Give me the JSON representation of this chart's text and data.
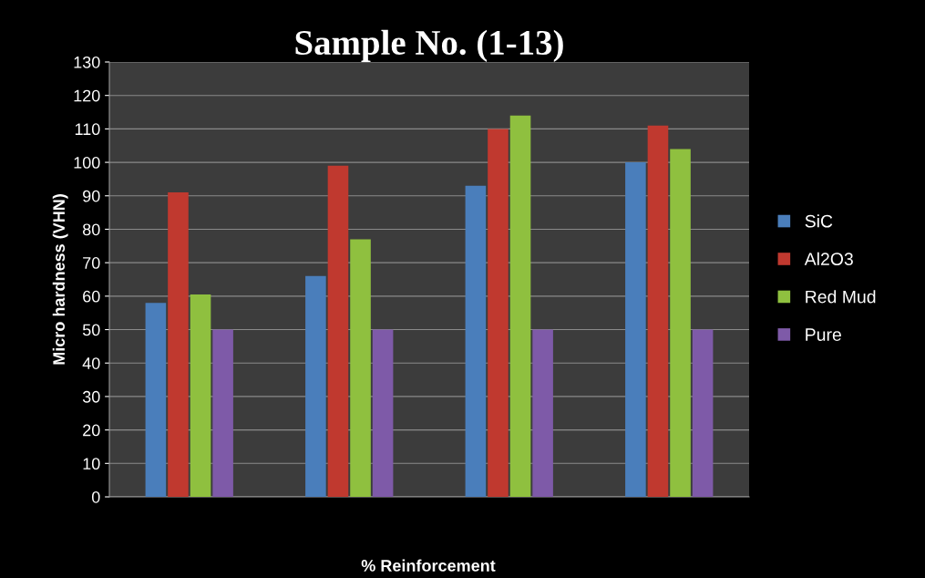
{
  "chart_data": {
    "type": "bar",
    "title": "Sample No. (1-13)",
    "xlabel": "% Reinforcement",
    "ylabel": "Micro hardness (VHN)",
    "categories": [
      null,
      null,
      null,
      null
    ],
    "series": [
      {
        "name": "SiC",
        "color": "#4a7ebb",
        "values": [
          58,
          66,
          93,
          100
        ]
      },
      {
        "name": "Al2O3",
        "color": "#c0392f",
        "values": [
          91,
          99,
          110,
          111
        ]
      },
      {
        "name": "Red Mud",
        "color": "#8fc03f",
        "values": [
          60.5,
          77,
          114,
          104
        ]
      },
      {
        "name": "Pure",
        "color": "#7e5aa8",
        "values": [
          50,
          50,
          50,
          50
        ]
      }
    ],
    "ylim": [
      0,
      130
    ],
    "yticks": [
      0,
      10,
      20,
      30,
      40,
      50,
      60,
      70,
      80,
      90,
      100,
      110,
      120,
      130
    ],
    "grid": "y",
    "legend": "right"
  }
}
